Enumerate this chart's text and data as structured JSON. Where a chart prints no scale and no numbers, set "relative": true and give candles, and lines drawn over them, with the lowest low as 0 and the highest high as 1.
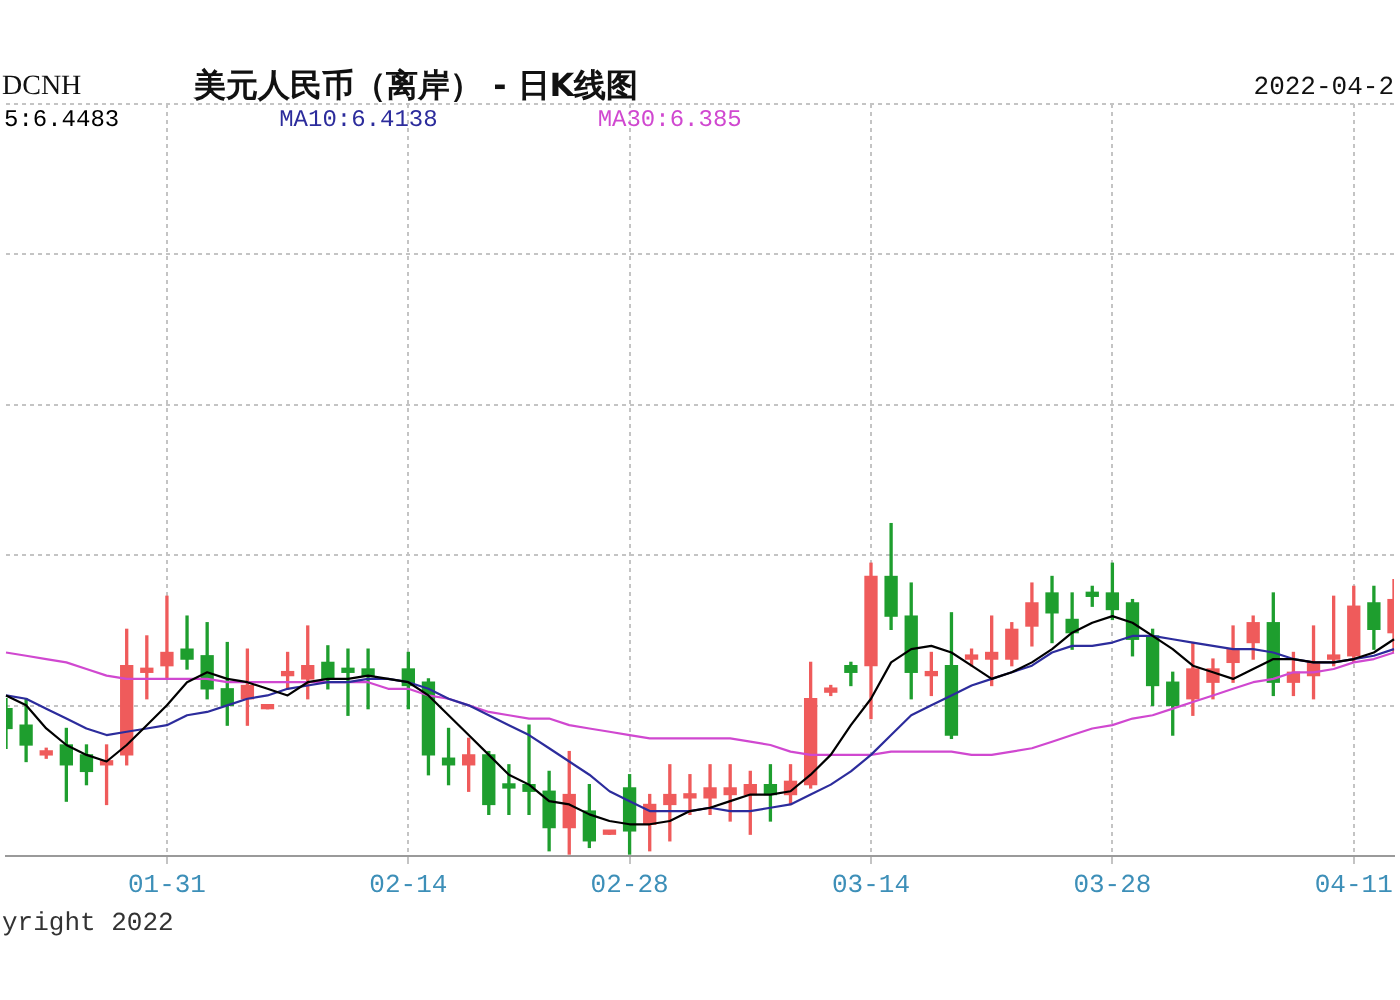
{
  "chart_data": {
    "type": "candlestick",
    "title": "美元人民币（离岸） - 日K线图",
    "annotations": [
      "DCNH",
      "2022-04-2",
      "yright 2022"
    ],
    "categories": [
      null,
      null,
      null,
      null,
      null,
      null,
      null,
      null,
      "01-31",
      null,
      null,
      null,
      null,
      null,
      null,
      null,
      null,
      null,
      null,
      null,
      "02-14",
      null,
      null,
      null,
      null,
      null,
      null,
      null,
      null,
      null,
      null,
      "02-28",
      null,
      null,
      null,
      null,
      null,
      null,
      null,
      null,
      null,
      null,
      null,
      "03-14",
      null,
      null,
      null,
      null,
      null,
      null,
      null,
      null,
      null,
      null,
      null,
      "03-28",
      null,
      null,
      null,
      null,
      null,
      null,
      null,
      null,
      null,
      null,
      null,
      "04-11",
      null,
      null
    ],
    "relative": true,
    "ohlc": [
      [
        0.44,
        0.47,
        0.32,
        0.38
      ],
      [
        0.39,
        0.47,
        0.28,
        0.33
      ],
      [
        0.3,
        0.32,
        0.29,
        0.31
      ],
      [
        0.33,
        0.38,
        0.16,
        0.27
      ],
      [
        0.3,
        0.33,
        0.21,
        0.25
      ],
      [
        0.27,
        0.33,
        0.15,
        0.28
      ],
      [
        0.3,
        0.68,
        0.27,
        0.57
      ],
      [
        0.55,
        0.66,
        0.47,
        0.56
      ],
      [
        0.57,
        0.78,
        0.53,
        0.61
      ],
      [
        0.62,
        0.72,
        0.56,
        0.59
      ],
      [
        0.6,
        0.7,
        0.47,
        0.5
      ],
      [
        0.5,
        0.64,
        0.39,
        0.45
      ],
      [
        0.47,
        0.62,
        0.39,
        0.51
      ],
      [
        0.44,
        0.45,
        0.44,
        0.45
      ],
      [
        0.54,
        0.61,
        0.5,
        0.55
      ],
      [
        0.53,
        0.69,
        0.47,
        0.57
      ],
      [
        0.58,
        0.63,
        0.5,
        0.53
      ],
      [
        0.56,
        0.62,
        0.42,
        0.55
      ],
      [
        0.56,
        0.62,
        0.44,
        0.54
      ],
      null,
      [
        0.56,
        0.61,
        0.44,
        0.51
      ],
      [
        0.52,
        0.53,
        0.24,
        0.3
      ],
      [
        0.29,
        0.38,
        0.21,
        0.27
      ],
      [
        0.27,
        0.35,
        0.19,
        0.3
      ],
      [
        0.3,
        0.31,
        0.12,
        0.15
      ],
      [
        0.21,
        0.27,
        0.12,
        0.2
      ],
      [
        0.21,
        0.39,
        0.12,
        0.19
      ],
      [
        0.19,
        0.25,
        0.01,
        0.08
      ],
      [
        0.08,
        0.31,
        0.0,
        0.18
      ],
      [
        0.13,
        0.21,
        0.02,
        0.04
      ],
      [
        0.06,
        0.07,
        0.06,
        0.07
      ],
      [
        0.2,
        0.24,
        0.0,
        0.07
      ],
      [
        0.09,
        0.18,
        0.01,
        0.15
      ],
      [
        0.15,
        0.27,
        0.04,
        0.18
      ],
      [
        0.17,
        0.24,
        0.12,
        0.18
      ],
      [
        0.17,
        0.27,
        0.12,
        0.2
      ],
      [
        0.18,
        0.27,
        0.1,
        0.2
      ],
      [
        0.18,
        0.25,
        0.06,
        0.21
      ],
      [
        0.21,
        0.27,
        0.1,
        0.18
      ],
      [
        0.18,
        0.27,
        0.15,
        0.22
      ],
      [
        0.21,
        0.58,
        0.2,
        0.47
      ],
      [
        0.49,
        0.51,
        0.48,
        0.5
      ],
      [
        0.57,
        0.58,
        0.51,
        0.55
      ],
      [
        0.57,
        0.88,
        0.41,
        0.84
      ],
      [
        0.84,
        1.0,
        0.68,
        0.72
      ],
      [
        0.72,
        0.82,
        0.47,
        0.55
      ],
      [
        0.54,
        0.61,
        0.48,
        0.55
      ],
      [
        0.57,
        0.73,
        0.35,
        0.36
      ],
      [
        0.59,
        0.62,
        0.57,
        0.6
      ],
      [
        0.59,
        0.72,
        0.51,
        0.61
      ],
      [
        0.59,
        0.7,
        0.57,
        0.68
      ],
      [
        0.69,
        0.82,
        0.63,
        0.76
      ],
      [
        0.79,
        0.84,
        0.64,
        0.73
      ],
      [
        0.71,
        0.79,
        0.62,
        0.67
      ],
      [
        0.79,
        0.81,
        0.75,
        0.78
      ],
      [
        0.79,
        0.88,
        0.71,
        0.74
      ],
      [
        0.76,
        0.77,
        0.6,
        0.65
      ],
      [
        0.66,
        0.68,
        0.45,
        0.51
      ],
      [
        0.52,
        0.55,
        0.36,
        0.45
      ],
      [
        0.47,
        0.64,
        0.42,
        0.56
      ],
      [
        0.52,
        0.59,
        0.47,
        0.56
      ],
      [
        0.58,
        0.69,
        0.52,
        0.62
      ],
      [
        0.64,
        0.72,
        0.59,
        0.7
      ],
      [
        0.7,
        0.79,
        0.48,
        0.52
      ],
      [
        0.52,
        0.61,
        0.48,
        0.55
      ],
      [
        0.54,
        0.69,
        0.47,
        0.58
      ],
      [
        0.59,
        0.78,
        0.57,
        0.6
      ],
      [
        0.6,
        0.81,
        0.58,
        0.75
      ],
      [
        0.76,
        0.81,
        0.62,
        0.68
      ],
      [
        0.67,
        0.83,
        0.61,
        0.77
      ]
    ],
    "colors": [
      "#1e9e2e",
      "#1e9e2e",
      "#ef5b5b",
      "#1e9e2e",
      "#1e9e2e",
      "#ef5b5b",
      "#ef5b5b",
      "#ef5b5b",
      "#ef5b5b",
      "#1e9e2e",
      "#1e9e2e",
      "#1e9e2e",
      "#ef5b5b",
      "#ef5b5b",
      "#ef5b5b",
      "#ef5b5b",
      "#1e9e2e",
      "#1e9e2e",
      "#1e9e2e",
      null,
      "#1e9e2e",
      "#1e9e2e",
      "#1e9e2e",
      "#ef5b5b",
      "#1e9e2e",
      "#1e9e2e",
      "#1e9e2e",
      "#1e9e2e",
      "#ef5b5b",
      "#1e9e2e",
      "#ef5b5b",
      "#1e9e2e",
      "#ef5b5b",
      "#ef5b5b",
      "#ef5b5b",
      "#ef5b5b",
      "#ef5b5b",
      "#ef5b5b",
      "#1e9e2e",
      "#ef5b5b",
      "#ef5b5b",
      "#ef5b5b",
      "#1e9e2e",
      "#ef5b5b",
      "#1e9e2e",
      "#1e9e2e",
      "#ef5b5b",
      "#1e9e2e",
      "#ef5b5b",
      "#ef5b5b",
      "#ef5b5b",
      "#ef5b5b",
      "#1e9e2e",
      "#1e9e2e",
      "#1e9e2e",
      "#1e9e2e",
      "#1e9e2e",
      "#1e9e2e",
      "#1e9e2e",
      "#ef5b5b",
      "#ef5b5b",
      "#ef5b5b",
      "#ef5b5b",
      "#1e9e2e",
      "#ef5b5b",
      "#ef5b5b",
      "#ef5b5b",
      "#ef5b5b",
      "#1e9e2e",
      "#ef5b5b"
    ],
    "series": [
      {
        "type": "line",
        "name": "5:6.4483",
        "color": "#000000",
        "values": [
          0.48,
          0.45,
          0.38,
          0.33,
          0.3,
          0.28,
          0.33,
          0.39,
          0.45,
          0.52,
          0.55,
          0.53,
          0.52,
          0.5,
          0.48,
          0.52,
          0.53,
          0.53,
          0.54,
          0.53,
          0.52,
          0.48,
          0.42,
          0.36,
          0.3,
          0.24,
          0.21,
          0.16,
          0.15,
          0.12,
          0.1,
          0.09,
          0.09,
          0.1,
          0.13,
          0.14,
          0.16,
          0.18,
          0.18,
          0.19,
          0.24,
          0.3,
          0.39,
          0.47,
          0.58,
          0.62,
          0.63,
          0.61,
          0.57,
          0.53,
          0.55,
          0.58,
          0.62,
          0.67,
          0.7,
          0.72,
          0.7,
          0.66,
          0.62,
          0.57,
          0.55,
          0.53,
          0.56,
          0.59,
          0.59,
          0.58,
          0.58,
          0.59,
          0.61,
          0.65
        ]
      },
      {
        "type": "line",
        "name": "MA10:6.4138",
        "color": "#2c2c9c",
        "values": [
          0.48,
          0.47,
          0.44,
          0.41,
          0.38,
          0.36,
          0.37,
          0.38,
          0.39,
          0.42,
          0.43,
          0.45,
          0.47,
          0.48,
          0.5,
          0.51,
          0.52,
          0.52,
          0.53,
          0.53,
          0.52,
          0.5,
          0.47,
          0.45,
          0.42,
          0.39,
          0.36,
          0.32,
          0.28,
          0.24,
          0.19,
          0.16,
          0.13,
          0.13,
          0.13,
          0.14,
          0.13,
          0.13,
          0.14,
          0.15,
          0.18,
          0.21,
          0.25,
          0.3,
          0.36,
          0.42,
          0.45,
          0.48,
          0.51,
          0.53,
          0.55,
          0.57,
          0.61,
          0.63,
          0.63,
          0.64,
          0.66,
          0.66,
          0.65,
          0.64,
          0.63,
          0.62,
          0.62,
          0.61,
          0.59,
          0.58,
          0.58,
          0.59,
          0.6,
          0.62
        ]
      },
      {
        "type": "line",
        "name": "MA30:6.385",
        "color": "#d048d0",
        "values": [
          0.61,
          0.6,
          0.59,
          0.58,
          0.56,
          0.54,
          0.53,
          0.53,
          0.53,
          0.53,
          0.53,
          0.52,
          0.52,
          0.52,
          0.52,
          0.52,
          0.52,
          0.52,
          0.52,
          0.5,
          0.5,
          0.48,
          0.47,
          0.45,
          0.43,
          0.42,
          0.41,
          0.41,
          0.39,
          0.38,
          0.37,
          0.36,
          0.35,
          0.35,
          0.35,
          0.35,
          0.35,
          0.34,
          0.33,
          0.31,
          0.3,
          0.3,
          0.3,
          0.3,
          0.31,
          0.31,
          0.31,
          0.31,
          0.3,
          0.3,
          0.31,
          0.32,
          0.34,
          0.36,
          0.38,
          0.39,
          0.41,
          0.42,
          0.44,
          0.46,
          0.48,
          0.5,
          0.52,
          0.53,
          0.55,
          0.55,
          0.56,
          0.58,
          0.59,
          0.61
        ]
      }
    ],
    "grid": true,
    "legend": "top left",
    "marker": "none"
  }
}
